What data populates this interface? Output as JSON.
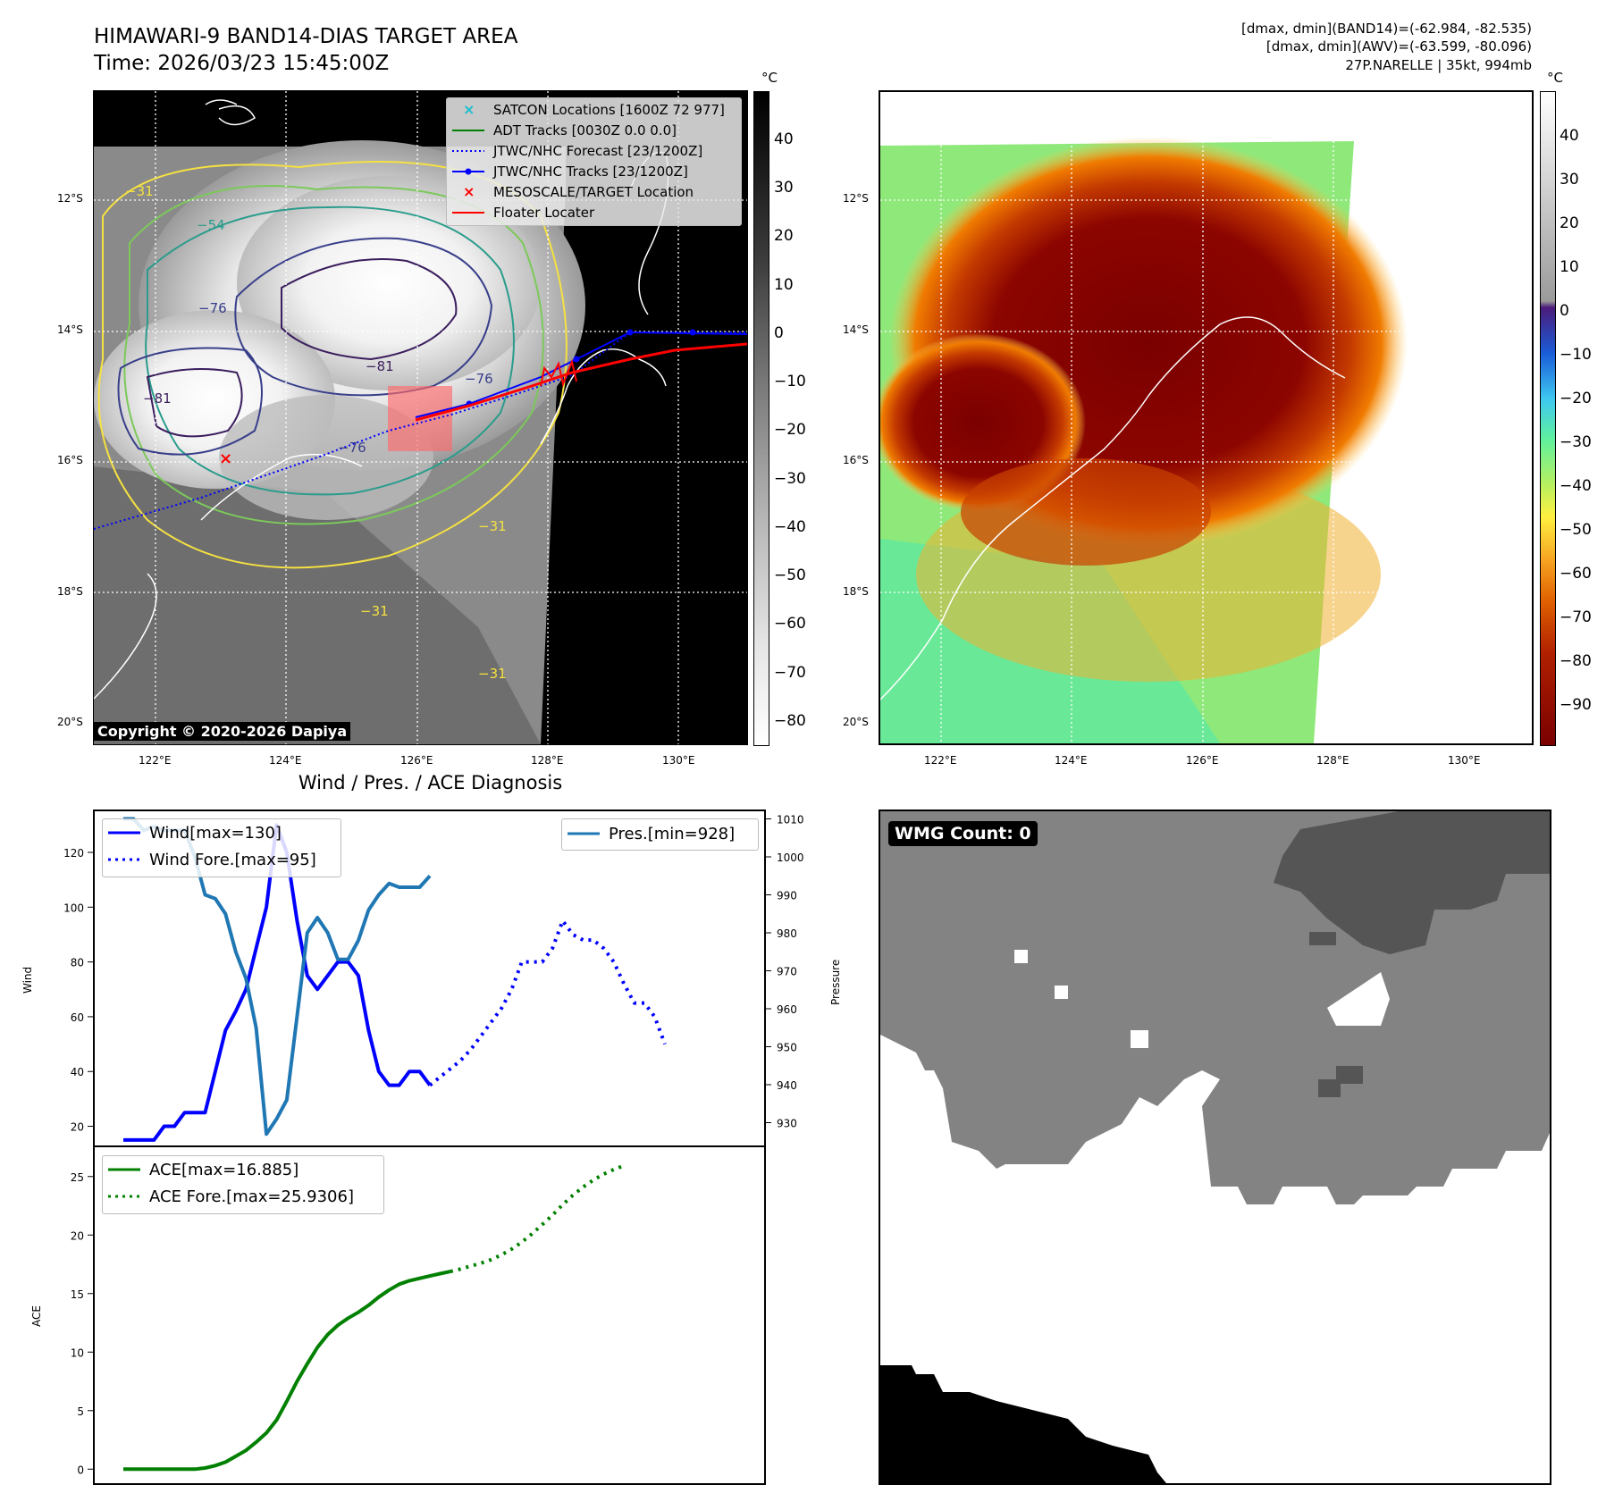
{
  "header": {
    "title_line1": "HIMAWARI-9 BAND14-DIAS TARGET AREA",
    "title_line2": "Time: 2026/03/23 15:45:00Z",
    "info_line1": "[dmax, dmin](BAND14)=(-62.984, -82.535)",
    "info_line2": "[dmax, dmin](AWV)=(-63.599, -80.096)",
    "info_line3": "27P.NARELLE | 35kt, 994mb"
  },
  "maps": {
    "lat_labels": [
      "12°S",
      "14°S",
      "16°S",
      "18°S",
      "20°S"
    ],
    "lon_labels": [
      "122°E",
      "124°E",
      "126°E",
      "128°E",
      "130°E"
    ],
    "copyright": "Copyright © 2020-2026 Dapiya",
    "colorbar_unit": "°C",
    "left_colorbar_ticks": [
      "40",
      "30",
      "20",
      "10",
      "0",
      "−10",
      "−20",
      "−30",
      "−40",
      "−50",
      "−60",
      "−70",
      "−80"
    ],
    "right_colorbar_ticks": [
      "40",
      "30",
      "20",
      "10",
      "0",
      "−10",
      "−20",
      "−30",
      "−40",
      "−50",
      "−60",
      "−70",
      "−80",
      "−90"
    ],
    "contour_labels": [
      "−54",
      "−76",
      "−81",
      "−76",
      "−81",
      "−76",
      "−31",
      "−31",
      "−31",
      "−31"
    ],
    "legend": [
      {
        "label": "SATCON Locations [1600Z 72 977]",
        "color": "#17becf",
        "marker": "x"
      },
      {
        "label": "ADT Tracks [0030Z 0.0 0.0]",
        "color": "#008000",
        "marker": "line"
      },
      {
        "label": "JTWC/NHC Forecast [23/1200Z]",
        "color": "#0000ff",
        "marker": "dotted"
      },
      {
        "label": "JTWC/NHC Tracks [23/1200Z]",
        "color": "#0000ff",
        "marker": "line-dot"
      },
      {
        "label": "MESOSCALE/TARGET Location",
        "color": "#ff0000",
        "marker": "x"
      },
      {
        "label": "Floater Locater",
        "color": "#ff0000",
        "marker": "line"
      }
    ]
  },
  "diagnosis": {
    "title": "Wind / Pres. / ACE Diagnosis",
    "wind_ylabel": "Wind",
    "pres_ylabel": "Pressure",
    "ace_ylabel": "ACE",
    "legend_wind": "Wind[max=130]",
    "legend_wind_fore": "Wind Fore.[max=95]",
    "legend_pres": "Pres.[min=928]",
    "legend_ace": "ACE[max=16.885]",
    "legend_ace_fore": "ACE Fore.[max=25.9306]"
  },
  "wmg": {
    "label": "WMG Count: 0"
  },
  "chart_data": [
    {
      "type": "line",
      "name": "wind-pressure",
      "x": [
        0,
        1,
        2,
        3,
        4,
        5,
        6,
        7,
        8,
        9,
        10,
        11,
        12,
        13,
        14,
        15,
        16,
        17,
        18,
        19,
        20,
        21,
        22,
        23,
        24,
        25,
        26,
        27,
        28,
        29,
        30,
        31,
        32,
        33,
        34,
        35,
        36,
        37,
        38,
        39,
        40,
        41,
        42,
        43,
        44,
        45,
        46,
        47,
        48,
        49,
        50,
        51,
        52,
        53,
        54,
        55,
        56,
        57,
        58,
        59,
        60
      ],
      "series": [
        {
          "name": "Wind[max=130]",
          "axis": "left",
          "color": "#0000ff",
          "style": "solid",
          "values": [
            15,
            15,
            15,
            15,
            20,
            20,
            25,
            25,
            25,
            40,
            55,
            62,
            70,
            85,
            100,
            130,
            120,
            95,
            75,
            70,
            75,
            80,
            80,
            75,
            55,
            40,
            35,
            35,
            40,
            40,
            35,
            null,
            null,
            null,
            null,
            null,
            null,
            null,
            null,
            null,
            null,
            null,
            null,
            null,
            null,
            null,
            null,
            null,
            null,
            null,
            null,
            null,
            null,
            null,
            null,
            null,
            null,
            null,
            null,
            null,
            null
          ]
        },
        {
          "name": "Wind Fore.[max=95]",
          "axis": "left",
          "color": "#0000ff",
          "style": "dotted",
          "values": [
            null,
            null,
            null,
            null,
            null,
            null,
            null,
            null,
            null,
            null,
            null,
            null,
            null,
            null,
            null,
            null,
            null,
            null,
            null,
            null,
            null,
            null,
            null,
            null,
            null,
            null,
            null,
            null,
            null,
            null,
            35,
            38,
            41,
            44,
            48,
            53,
            58,
            63,
            70,
            80,
            80,
            80,
            85,
            95,
            90,
            88,
            88,
            85,
            80,
            72,
            65,
            65,
            60,
            50,
            null,
            null,
            null,
            null,
            null,
            null,
            null
          ]
        },
        {
          "name": "Pres.[min=928]",
          "axis": "right",
          "color": "#1f77b4",
          "style": "solid",
          "values": [
            1010,
            1010,
            1007,
            1008,
            1007,
            1007,
            1007,
            1000,
            990,
            989,
            985,
            975,
            968,
            955,
            927,
            931,
            936,
            958,
            980,
            984,
            980,
            973,
            973,
            978,
            986,
            990,
            993,
            992,
            992,
            992,
            995,
            null,
            null,
            null,
            null,
            null,
            null,
            null,
            null,
            null,
            null,
            null,
            null,
            null,
            null,
            null,
            null,
            null,
            null,
            null,
            null,
            null,
            null,
            null,
            null,
            null,
            null,
            null,
            null,
            null,
            null
          ]
        }
      ],
      "ylim": [
        13,
        135
      ],
      "y2lim": [
        924,
        1012
      ],
      "yticks": [
        20,
        40,
        60,
        80,
        100,
        120
      ],
      "y2ticks": [
        930,
        940,
        950,
        960,
        970,
        980,
        990,
        1000,
        1010
      ]
    },
    {
      "type": "line",
      "name": "ace",
      "x": [
        0,
        1,
        2,
        3,
        4,
        5,
        6,
        7,
        8,
        9,
        10,
        11,
        12,
        13,
        14,
        15,
        16,
        17,
        18,
        19,
        20,
        21,
        22,
        23,
        24,
        25,
        26,
        27,
        28,
        29,
        30,
        31,
        32,
        33,
        34,
        35,
        36,
        37,
        38,
        39,
        40,
        41,
        42,
        43,
        44,
        45,
        46,
        47,
        48,
        49,
        50,
        51,
        52,
        53,
        54,
        55,
        56,
        57,
        58,
        59,
        60
      ],
      "series": [
        {
          "name": "ACE[max=16.885]",
          "color": "#008000",
          "style": "solid",
          "values": [
            0,
            0,
            0,
            0,
            0,
            0,
            0,
            0,
            0.1,
            0.3,
            0.6,
            1.1,
            1.6,
            2.3,
            3.1,
            4.2,
            5.8,
            7.5,
            9.0,
            10.4,
            11.5,
            12.3,
            12.9,
            13.4,
            14.0,
            14.7,
            15.3,
            15.8,
            16.1,
            16.3,
            16.5,
            16.7,
            16.885,
            null,
            null,
            null,
            null,
            null,
            null,
            null,
            null,
            null,
            null,
            null,
            null,
            null,
            null,
            null,
            null,
            null,
            null,
            null,
            null,
            null,
            null,
            null,
            null,
            null,
            null,
            null,
            null
          ]
        },
        {
          "name": "ACE Fore.[max=25.9306]",
          "color": "#008000",
          "style": "dotted",
          "values": [
            null,
            null,
            null,
            null,
            null,
            null,
            null,
            null,
            null,
            null,
            null,
            null,
            null,
            null,
            null,
            null,
            null,
            null,
            null,
            null,
            null,
            null,
            null,
            null,
            null,
            null,
            null,
            null,
            null,
            null,
            null,
            null,
            16.885,
            17.1,
            17.35,
            17.6,
            17.9,
            18.3,
            18.8,
            19.4,
            20.1,
            20.9,
            21.7,
            22.6,
            23.4,
            24.1,
            24.7,
            25.2,
            25.6,
            25.9306,
            null,
            null,
            null,
            null,
            null,
            null,
            null,
            null,
            null,
            null,
            null
          ]
        }
      ],
      "ylim": [
        -1.2,
        27.5
      ],
      "yticks": [
        0,
        5,
        10,
        15,
        20,
        25
      ]
    }
  ]
}
